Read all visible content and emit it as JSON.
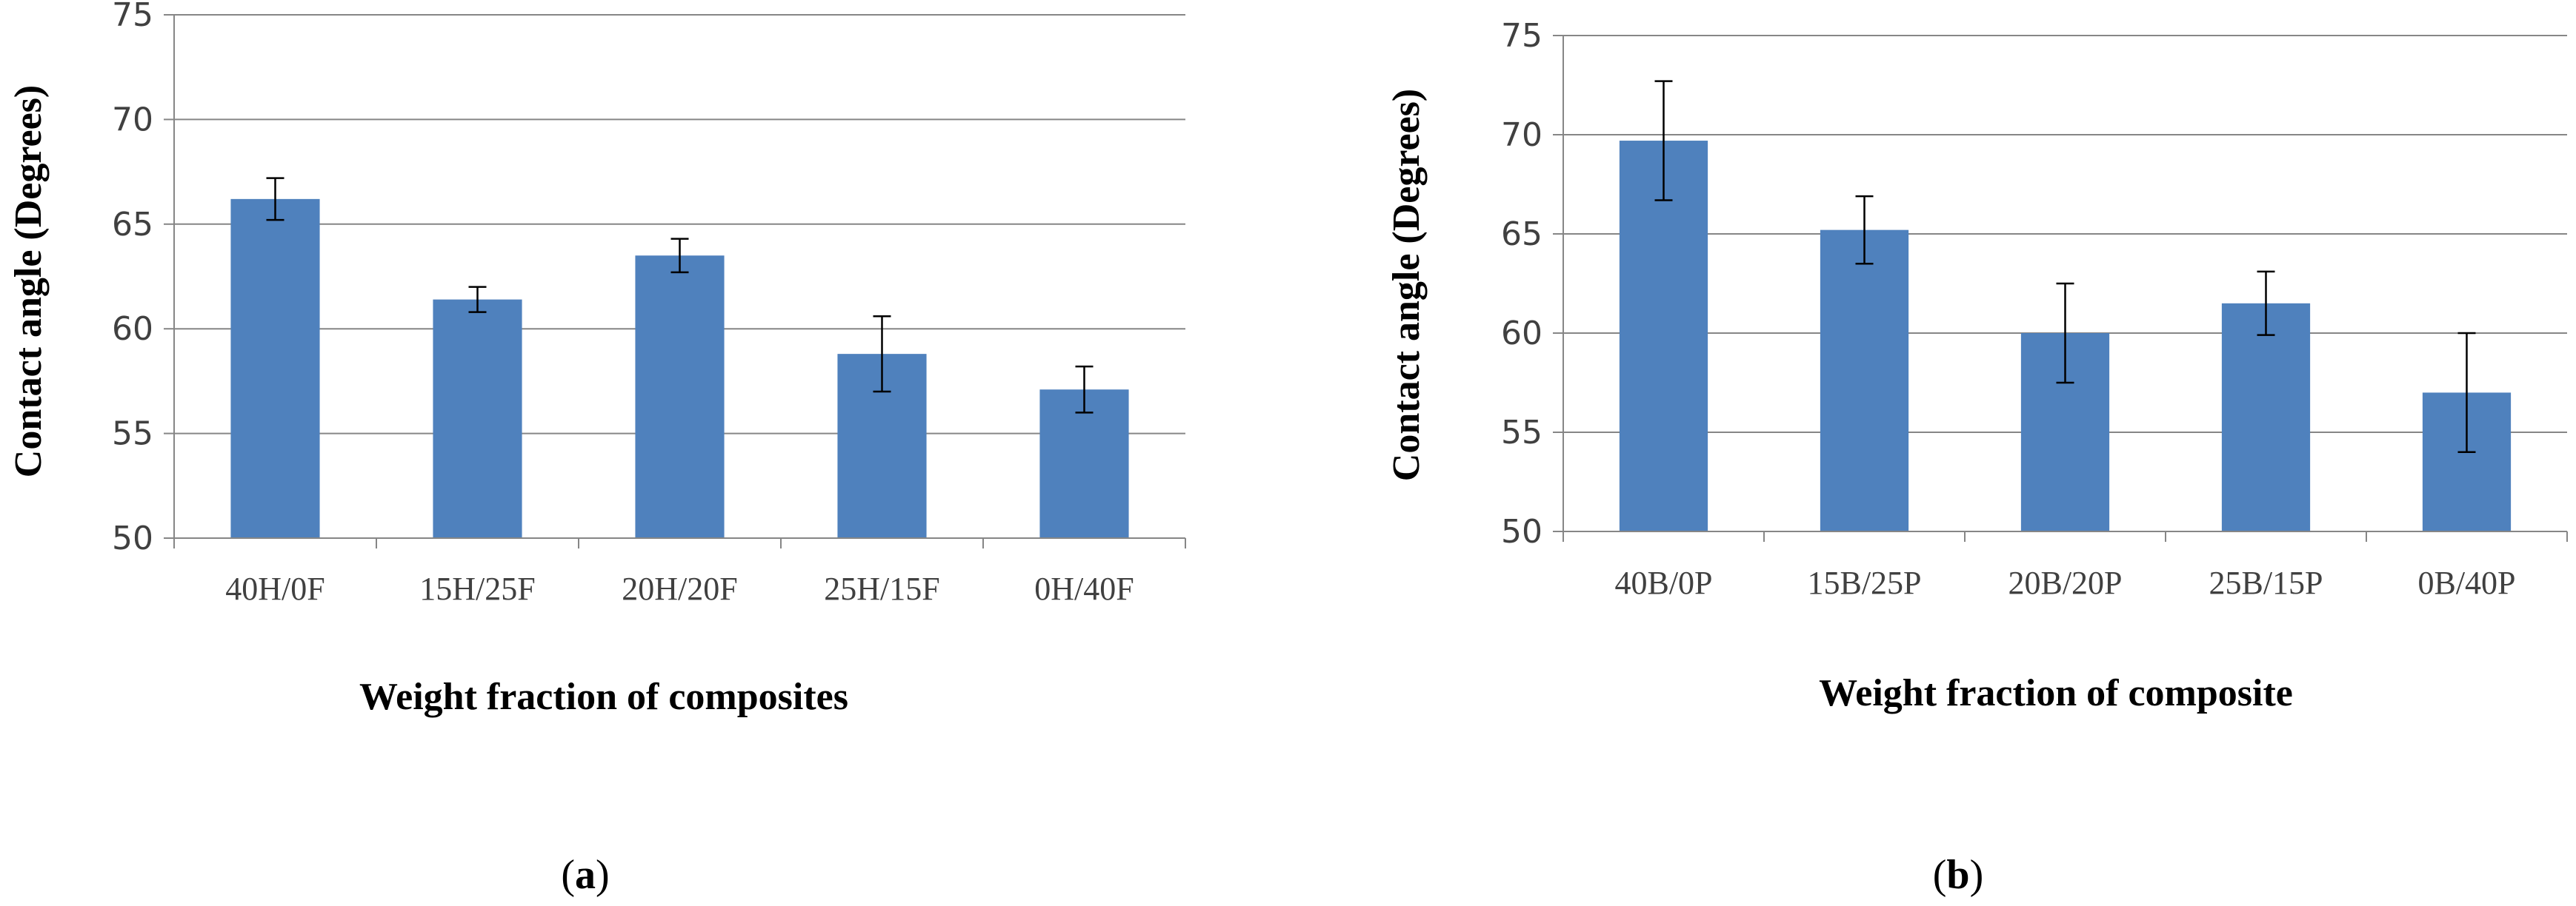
{
  "colors": {
    "bar": "#4F81BD",
    "axis": "#868686",
    "grid": "#868686",
    "error": "#000000"
  },
  "chart_data": [
    {
      "type": "bar",
      "panel": "a",
      "panel_label": "a",
      "title": "",
      "xlabel": "Weight fraction of composites",
      "ylabel": "Contact angle (Degrees)",
      "ylim": [
        50,
        75
      ],
      "yticks": [
        50,
        55,
        60,
        65,
        70,
        75
      ],
      "ytick_labels": [
        "50",
        "55",
        "60",
        "65",
        "70",
        "75"
      ],
      "grid": true,
      "categories": [
        "40H/0F",
        "15H/25F",
        "20H/20F",
        "25H/15F",
        "0H/40F"
      ],
      "values": [
        66.2,
        61.4,
        63.5,
        58.8,
        57.1
      ],
      "errors": [
        1.0,
        0.6,
        0.8,
        1.8,
        1.1
      ]
    },
    {
      "type": "bar",
      "panel": "b",
      "panel_label": "b",
      "title": "",
      "xlabel": "Weight fraction of composite",
      "ylabel": "Contact angle (Degrees)",
      "ylim": [
        50,
        75
      ],
      "yticks": [
        50,
        55,
        60,
        65,
        70,
        75
      ],
      "ytick_labels": [
        "50",
        "55",
        "60",
        "65",
        "70",
        "75"
      ],
      "grid": true,
      "categories": [
        "40B/0P",
        "15B/25P",
        "20B/20P",
        "25B/15P",
        "0B/40P"
      ],
      "values": [
        69.7,
        65.2,
        60.0,
        61.5,
        57.0
      ],
      "errors": [
        3.0,
        1.7,
        2.5,
        1.6,
        3.0
      ]
    }
  ]
}
